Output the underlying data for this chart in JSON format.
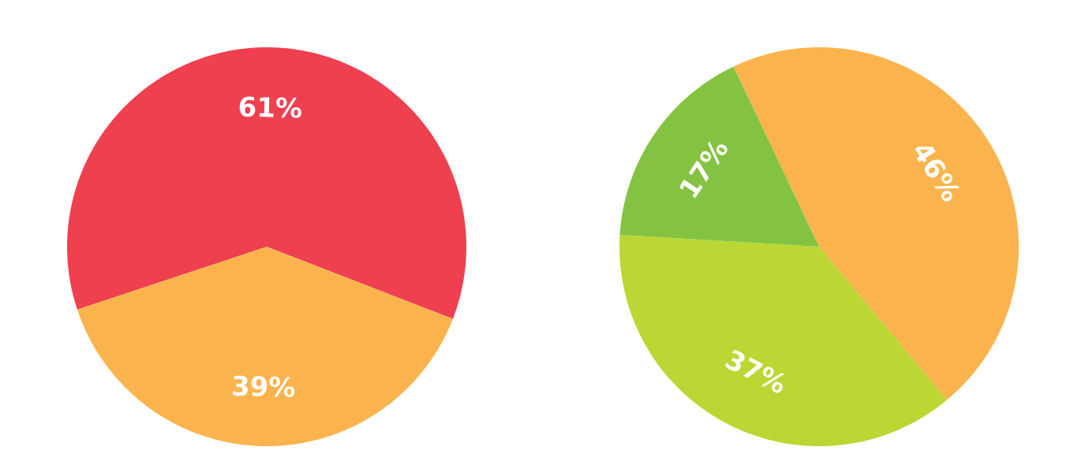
{
  "chart_data": [
    {
      "type": "pie",
      "categories": [
        null,
        null
      ],
      "values": [
        61,
        39
      ],
      "colors": [
        "#ef4050",
        "#fbb44d"
      ],
      "value_labels": [
        "61%",
        "39%"
      ]
    },
    {
      "type": "pie",
      "categories": [
        null,
        null,
        null
      ],
      "values": [
        46,
        37,
        17
      ],
      "colors": [
        "#fbb44d",
        "#bcd633",
        "#84c341"
      ],
      "value_labels": [
        "46%",
        "37%",
        "17%"
      ]
    }
  ]
}
